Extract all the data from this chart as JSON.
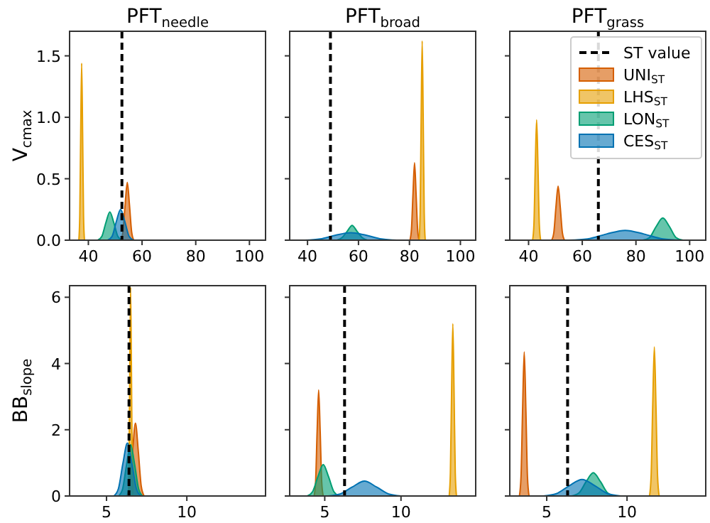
{
  "chart_data": [
    {
      "type": "area",
      "title": "PFT$_{needle}$",
      "ylabel": "V$_{cmax}$",
      "xlim": [
        33,
        106
      ],
      "xticks": [
        40,
        60,
        80,
        100
      ],
      "ylim": [
        0,
        1.7
      ],
      "yticks": [
        {
          "value": 0,
          "label": "0.0"
        },
        0.5,
        {
          "value": 1,
          "label": "1.0"
        },
        1.5
      ],
      "ref_lines": [
        {
          "axis": "x",
          "value": 52.5,
          "line_style": "dashed",
          "color": "#000000"
        }
      ],
      "series": [
        {
          "color": "#d55e00",
          "x": [
            52.1,
            52.9,
            53.7,
            54.5,
            55.3,
            56.1,
            56.9
          ],
          "values": [
            0,
            0.07,
            0.29,
            0.47,
            0.29,
            0.07,
            0
          ]
        },
        {
          "color": "#e69f00",
          "x": [
            36.45,
            36.8,
            37.15,
            37.5,
            37.85,
            38.2,
            38.55
          ],
          "values": [
            0,
            0.2,
            0.88,
            1.44,
            0.88,
            0.2,
            0
          ]
        },
        {
          "color": "#009e73",
          "x": [
            43.5,
            45,
            46.5,
            48,
            49.5,
            51,
            52.5
          ],
          "values": [
            0,
            0.03,
            0.14,
            0.23,
            0.14,
            0.03,
            0
          ]
        },
        {
          "color": "#0072b2",
          "x": [
            47.2,
            48.8,
            50.4,
            52,
            53.6,
            55.2,
            56.8
          ],
          "values": [
            0,
            0.03,
            0.15,
            0.25,
            0.15,
            0.03,
            0
          ]
        }
      ]
    },
    {
      "type": "area",
      "title": "PFT$_{broad}$",
      "xlim": [
        33,
        106
      ],
      "xticks": [
        40,
        60,
        80,
        100
      ],
      "ylim": [
        0,
        1.7
      ],
      "yticks": [
        0,
        0.5,
        1,
        1.5
      ],
      "tick_labels": "x",
      "ref_lines": [
        {
          "axis": "x",
          "value": 49,
          "line_style": "dashed",
          "color": "#000000"
        }
      ],
      "series": [
        {
          "color": "#d55e00",
          "x": [
            80.2,
            80.8,
            81.4,
            82,
            82.6,
            83.2,
            83.8
          ],
          "values": [
            0,
            0.09,
            0.38,
            0.63,
            0.38,
            0.09,
            0
          ]
        },
        {
          "color": "#e69f00",
          "x": [
            83.8,
            84.2,
            84.6,
            85,
            85.4,
            85.8,
            86.2
          ],
          "values": [
            0,
            0.22,
            0.99,
            1.62,
            0.99,
            0.22,
            0
          ]
        },
        {
          "color": "#009e73",
          "x": [
            51.5,
            53.5,
            55.5,
            57.5,
            59.5,
            61.5,
            63.5
          ],
          "values": [
            0,
            0.02,
            0.07,
            0.12,
            0.07,
            0.02,
            0
          ]
        },
        {
          "color": "#0072b2",
          "x": [
            39,
            45,
            51,
            57,
            63,
            69,
            75
          ],
          "values": [
            0,
            0.01,
            0.04,
            0.06,
            0.04,
            0.01,
            0
          ]
        }
      ]
    },
    {
      "type": "area",
      "title": "PFT$_{grass}$",
      "xlim": [
        33,
        106
      ],
      "xticks": [
        40,
        60,
        80,
        100
      ],
      "ylim": [
        0,
        1.7
      ],
      "yticks": [
        0,
        0.5,
        1,
        1.5
      ],
      "tick_labels": "x",
      "legend": "top right",
      "ref_lines": [
        {
          "axis": "x",
          "value": 66,
          "label": "ST value",
          "line_style": "dashed",
          "color": "#000000"
        }
      ],
      "series": [
        {
          "name": "UNI$_{ST}$",
          "color": "#d55e00",
          "x": [
            48.6,
            49.4,
            50.2,
            51,
            51.8,
            52.6,
            53.4
          ],
          "values": [
            0,
            0.06,
            0.27,
            0.44,
            0.27,
            0.06,
            0
          ]
        },
        {
          "name": "LHS$_{ST}$",
          "color": "#e69f00",
          "x": [
            41.5,
            42,
            42.5,
            43,
            43.5,
            44,
            44.5
          ],
          "values": [
            0,
            0.13,
            0.6,
            0.98,
            0.6,
            0.13,
            0
          ]
        },
        {
          "name": "LON$_{ST}$",
          "color": "#009e73",
          "x": [
            82.5,
            85,
            87.5,
            90,
            92.5,
            95,
            97.5
          ],
          "values": [
            0,
            0.02,
            0.11,
            0.18,
            0.11,
            0.02,
            0
          ]
        },
        {
          "name": "CES$_{ST}$",
          "color": "#0072b2",
          "x": [
            55,
            62,
            69,
            76,
            83,
            90,
            97
          ],
          "values": [
            0,
            0.01,
            0.05,
            0.08,
            0.05,
            0.01,
            0
          ]
        }
      ]
    },
    {
      "type": "area",
      "ylabel": "BB$_{slope}$",
      "xlim": [
        2.7,
        14.9
      ],
      "xticks": [
        5,
        10
      ],
      "ylim": [
        0,
        6.35
      ],
      "yticks": [
        0,
        2,
        4,
        6
      ],
      "ref_lines": [
        {
          "axis": "x",
          "value": 6.4,
          "line_style": "dashed",
          "color": "#000000"
        }
      ],
      "series": [
        {
          "color": "#d55e00",
          "x": [
            6.26,
            6.44,
            6.62,
            6.8,
            6.98,
            7.16,
            7.34
          ],
          "values": [
            0,
            0.3,
            1.34,
            2.2,
            1.34,
            0.3,
            0
          ]
        },
        {
          "color": "#e69f00",
          "x": [
            6.35,
            6.4,
            6.45,
            6.5,
            6.55,
            6.6,
            6.65
          ],
          "values": [
            0,
            0.85,
            3.84,
            6.3,
            3.84,
            0.85,
            0
          ]
        },
        {
          "color": "#009e73",
          "x": [
            5.75,
            6,
            6.25,
            6.5,
            6.75,
            7,
            7.25
          ],
          "values": [
            0,
            0.21,
            0.95,
            1.55,
            0.95,
            0.21,
            0
          ]
        },
        {
          "color": "#0072b2",
          "x": [
            5.46,
            5.74,
            6.02,
            6.3,
            6.58,
            6.86,
            7.14
          ],
          "values": [
            0,
            0.22,
            0.98,
            1.6,
            0.98,
            0.22,
            0
          ]
        }
      ]
    },
    {
      "type": "area",
      "xlim": [
        2.7,
        14.9
      ],
      "xticks": [
        5,
        10
      ],
      "ylim": [
        0,
        6.35
      ],
      "yticks": [
        0,
        2,
        4,
        6
      ],
      "tick_labels": "x",
      "ref_lines": [
        {
          "axis": "x",
          "value": 6.3,
          "line_style": "dashed",
          "color": "#000000"
        }
      ],
      "series": [
        {
          "color": "#d55e00",
          "x": [
            4.3,
            4.4,
            4.5,
            4.6,
            4.7,
            4.8,
            4.9
          ],
          "values": [
            0,
            0.43,
            1.95,
            3.2,
            1.95,
            0.43,
            0
          ]
        },
        {
          "color": "#e69f00",
          "x": [
            13.16,
            13.24,
            13.32,
            13.4,
            13.48,
            13.56,
            13.64
          ],
          "values": [
            0,
            0.7,
            3.17,
            5.2,
            3.17,
            0.7,
            0
          ]
        },
        {
          "color": "#009e73",
          "x": [
            3.85,
            4.2,
            4.55,
            4.9,
            5.25,
            5.6,
            5.95
          ],
          "values": [
            0,
            0.13,
            0.58,
            0.95,
            0.58,
            0.13,
            0
          ]
        },
        {
          "color": "#0072b2",
          "x": [
            5.2,
            6,
            6.8,
            7.6,
            8.4,
            9.2,
            10
          ],
          "values": [
            0,
            0.06,
            0.27,
            0.45,
            0.27,
            0.06,
            0
          ]
        }
      ]
    },
    {
      "type": "area",
      "xlim": [
        2.7,
        14.9
      ],
      "xticks": [
        5,
        10
      ],
      "ylim": [
        0,
        6.35
      ],
      "yticks": [
        0,
        2,
        4,
        6
      ],
      "tick_labels": "x",
      "ref_lines": [
        {
          "axis": "x",
          "value": 6.3,
          "line_style": "dashed",
          "color": "#000000"
        }
      ],
      "series": [
        {
          "color": "#d55e00",
          "x": [
            3.3,
            3.4,
            3.5,
            3.6,
            3.7,
            3.8,
            3.9
          ],
          "values": [
            0,
            0.59,
            2.65,
            4.35,
            2.65,
            0.59,
            0
          ]
        },
        {
          "color": "#e69f00",
          "x": [
            11.4,
            11.5,
            11.6,
            11.7,
            11.8,
            11.9,
            12
          ],
          "values": [
            0,
            0.61,
            2.75,
            4.5,
            2.75,
            0.61,
            0
          ]
        },
        {
          "color": "#009e73",
          "x": [
            6.55,
            7,
            7.45,
            7.9,
            8.35,
            8.8,
            9.25
          ],
          "values": [
            0,
            0.09,
            0.43,
            0.7,
            0.43,
            0.09,
            0
          ]
        },
        {
          "color": "#0072b2",
          "x": [
            4.8,
            5.6,
            6.4,
            7.2,
            8,
            8.8,
            9.6
          ],
          "values": [
            0,
            0.07,
            0.31,
            0.5,
            0.31,
            0.07,
            0
          ]
        }
      ]
    }
  ]
}
